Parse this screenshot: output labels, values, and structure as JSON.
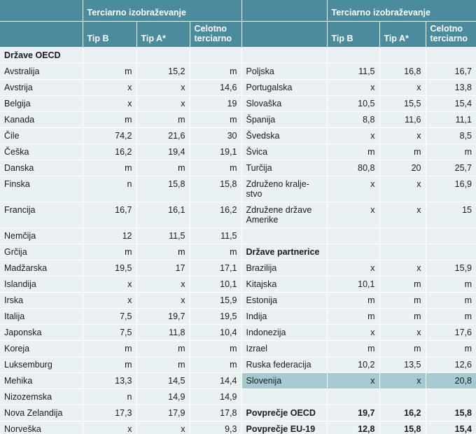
{
  "header": {
    "group_left": "Terciarno izobraževanje",
    "group_right": "Terciarno izobraževanje",
    "col_tipb": "Tip B",
    "col_tipa": "Tip A*",
    "col_total": "Celotno terciarno"
  },
  "rows": [
    {
      "l": [
        "Države OECD",
        "",
        "",
        ""
      ],
      "r": [
        "",
        "",
        "",
        ""
      ],
      "lb": true,
      "rb": false,
      "h": 23
    },
    {
      "l": [
        "Avstralija",
        "m",
        "15,2",
        "m"
      ],
      "r": [
        "Poljska",
        "11,5",
        "16,8",
        "16,7"
      ],
      "h": 23
    },
    {
      "l": [
        "Avstrija",
        "x",
        "x",
        "14,6"
      ],
      "r": [
        "Portugalska",
        "x",
        "x",
        "13,8"
      ],
      "h": 23
    },
    {
      "l": [
        "Belgija",
        "x",
        "x",
        "19"
      ],
      "r": [
        "Slovaška",
        "10,5",
        "15,5",
        "15,4"
      ],
      "h": 23
    },
    {
      "l": [
        "Kanada",
        "m",
        "m",
        "m"
      ],
      "r": [
        "Španija",
        "8,8",
        "11,6",
        "11,1"
      ],
      "h": 23
    },
    {
      "l": [
        "Čile",
        "74,2",
        "21,6",
        "30"
      ],
      "r": [
        "Švedska",
        "x",
        "x",
        "8,5"
      ],
      "h": 23
    },
    {
      "l": [
        "Češka",
        "16,2",
        "19,4",
        "19,1"
      ],
      "r": [
        "Švica",
        "m",
        "m",
        "m"
      ],
      "h": 23
    },
    {
      "l": [
        "Danska",
        "m",
        "m",
        "m"
      ],
      "r": [
        "Turčija",
        "80,8",
        "20",
        "25,7"
      ],
      "h": 23
    },
    {
      "l": [
        "Finska",
        "n",
        "15,8",
        "15,8"
      ],
      "r": [
        "Združeno kralje-\nstvo",
        "x",
        "x",
        "16,9"
      ],
      "h": 36,
      "top": true
    },
    {
      "l": [
        "Francija",
        "16,7",
        "16,1",
        "16,2"
      ],
      "r": [
        "Združene države\nAmerike",
        "x",
        "x",
        "15"
      ],
      "h": 36,
      "top": true
    },
    {
      "l": [
        "Nemčija",
        "12",
        "11,5",
        "11,5"
      ],
      "r": [
        "",
        "",
        "",
        ""
      ],
      "h": 23
    },
    {
      "l": [
        "Grčija",
        "m",
        "m",
        "m"
      ],
      "r": [
        "Države partnerice",
        "",
        "",
        ""
      ],
      "rb": true,
      "h": 23
    },
    {
      "l": [
        "Madžarska",
        "19,5",
        "17",
        "17,1"
      ],
      "r": [
        "Brazilija",
        "x",
        "x",
        "15,9"
      ],
      "h": 23
    },
    {
      "l": [
        "Islandija",
        "x",
        "x",
        "10,1"
      ],
      "r": [
        "Kitajska",
        "10,1",
        "m",
        "m"
      ],
      "h": 23
    },
    {
      "l": [
        "Irska",
        "x",
        "x",
        "15,9"
      ],
      "r": [
        "Estonija",
        "m",
        "m",
        "m"
      ],
      "h": 23
    },
    {
      "l": [
        "Italija",
        "7,5",
        "19,7",
        "19,5"
      ],
      "r": [
        "Indija",
        "m",
        "m",
        "m"
      ],
      "h": 23
    },
    {
      "l": [
        "Japonska",
        "7,5",
        "11,8",
        "10,4"
      ],
      "r": [
        "Indonezija",
        "x",
        "x",
        "17,6"
      ],
      "h": 23
    },
    {
      "l": [
        "Koreja",
        "m",
        "m",
        "m"
      ],
      "r": [
        "Izrael",
        "m",
        "m",
        "m"
      ],
      "h": 23
    },
    {
      "l": [
        "Luksemburg",
        "m",
        "m",
        "m"
      ],
      "r": [
        "Ruska federacija",
        "10,2",
        "13,5",
        "12,6"
      ],
      "h": 23
    },
    {
      "l": [
        "Mehika",
        "13,3",
        "14,5",
        "14,4"
      ],
      "r": [
        "Slovenija",
        "x",
        "x",
        "20,8"
      ],
      "hl": true,
      "h": 23
    },
    {
      "l": [
        "Nizozemska",
        "n",
        "14,9",
        "14,9"
      ],
      "r": [
        "",
        "",
        "",
        ""
      ],
      "h": 23
    },
    {
      "l": [
        "Nova Zelandija",
        "17,3",
        "17,9",
        "17,8"
      ],
      "r": [
        "Povprečje OECD",
        "19,7",
        "16,2",
        "15,8"
      ],
      "rb": true,
      "rbn": true,
      "h": 23
    },
    {
      "l": [
        "Norveška",
        "x",
        "x",
        "9,3"
      ],
      "r": [
        "Povprečje EU-19",
        "12,8",
        "15,8",
        "15,4"
      ],
      "rb": true,
      "rbn": true,
      "h": 23
    }
  ]
}
